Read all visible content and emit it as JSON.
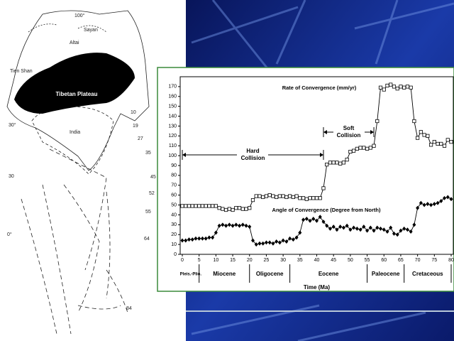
{
  "map": {
    "labels": [
      "100°",
      "Sayan",
      "Altai",
      "Tien Shan",
      "Tibetan Plateau",
      "India",
      "30°",
      "30",
      "0°",
      "10",
      "19",
      "27",
      "35",
      "45",
      "52",
      "55",
      "64",
      "84"
    ]
  },
  "chart_data": {
    "type": "line",
    "series": [
      {
        "name": "Rate of Convergence (mm/yr)",
        "marker": "square",
        "color": "#000000",
        "values": [
          49,
          49,
          49,
          49,
          49,
          49,
          49,
          49,
          49,
          49,
          49,
          47,
          46,
          45,
          46,
          45,
          47,
          47,
          46,
          46,
          47,
          55,
          59,
          59,
          58,
          59,
          60,
          59,
          58,
          59,
          59,
          58,
          59,
          58,
          59,
          57,
          57,
          56,
          57,
          57,
          57,
          57,
          67,
          91,
          93,
          93,
          93,
          92,
          93,
          96,
          104,
          105,
          107,
          108,
          108,
          107,
          108,
          110,
          135,
          169,
          167,
          171,
          172,
          170,
          168,
          170,
          169,
          170,
          169,
          135,
          118,
          124,
          121,
          120,
          111,
          114,
          112,
          112,
          110,
          116,
          114
        ]
      },
      {
        "name": "Angle of Convergence (Degree from North)",
        "marker": "diamond",
        "color": "#000000",
        "values": [
          14,
          14,
          15,
          15,
          16,
          16,
          16,
          16,
          17,
          17,
          22,
          29,
          30,
          29,
          30,
          29,
          30,
          29,
          30,
          29,
          28,
          14,
          10,
          11,
          11,
          12,
          12,
          11,
          13,
          12,
          14,
          13,
          16,
          15,
          17,
          22,
          35,
          36,
          34,
          36,
          34,
          38,
          33,
          29,
          26,
          28,
          25,
          28,
          27,
          29,
          25,
          27,
          26,
          25,
          28,
          24,
          27,
          24,
          27,
          26,
          25,
          23,
          27,
          21,
          20,
          24,
          26,
          25,
          23,
          30,
          47,
          52,
          50,
          51,
          50,
          51,
          52,
          54,
          57,
          58,
          56
        ]
      }
    ],
    "x": [
      0,
      1,
      2,
      3,
      4,
      5,
      6,
      7,
      8,
      9,
      10,
      11,
      12,
      13,
      14,
      15,
      16,
      17,
      18,
      19,
      20,
      21,
      22,
      23,
      24,
      25,
      26,
      27,
      28,
      29,
      30,
      31,
      32,
      33,
      34,
      35,
      36,
      37,
      38,
      39,
      40,
      41,
      42,
      43,
      44,
      45,
      46,
      47,
      48,
      49,
      50,
      51,
      52,
      53,
      54,
      55,
      56,
      57,
      58,
      59,
      60,
      61,
      62,
      63,
      64,
      65,
      66,
      67,
      68,
      69,
      70,
      71,
      72,
      73,
      74,
      75,
      76,
      77,
      78,
      79,
      80
    ],
    "xlim": [
      0,
      80
    ],
    "xticks": [
      0,
      5,
      10,
      15,
      20,
      25,
      30,
      35,
      40,
      45,
      50,
      55,
      60,
      65,
      70,
      75,
      80
    ],
    "ylim": [
      0,
      180
    ],
    "yticks": [
      0,
      10,
      20,
      30,
      40,
      50,
      60,
      70,
      80,
      90,
      100,
      110,
      120,
      130,
      140,
      150,
      160,
      170
    ],
    "xlabel": "Time (Ma)",
    "epochs": [
      {
        "label": "Pleis.-Plio.",
        "start": 0,
        "end": 5
      },
      {
        "label": "Miocene",
        "start": 5,
        "end": 20
      },
      {
        "label": "Oligocene",
        "start": 20,
        "end": 32
      },
      {
        "label": "Eocene",
        "start": 32,
        "end": 55
      },
      {
        "label": "Paleocene",
        "start": 55,
        "end": 66
      },
      {
        "label": "Cretaceous",
        "start": 66,
        "end": 80
      }
    ],
    "annotations": [
      {
        "text": "Hard Collision",
        "start": 0,
        "end": 42
      },
      {
        "text": "Soft Collision",
        "start": 42,
        "end": 57
      }
    ]
  }
}
